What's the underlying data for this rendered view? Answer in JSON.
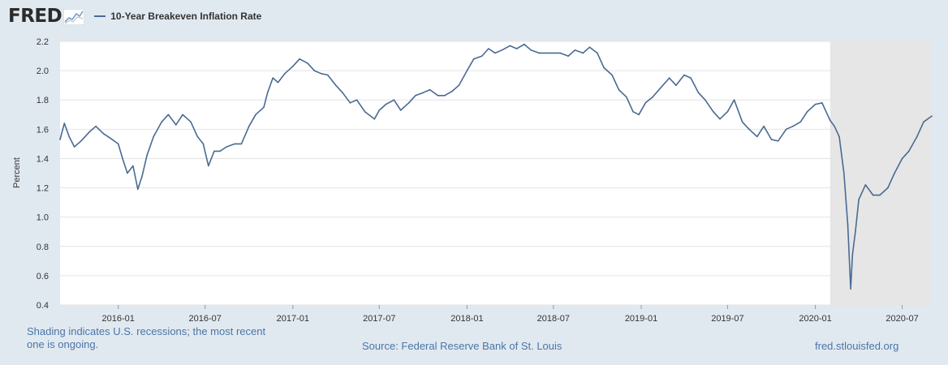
{
  "header": {
    "logo_text": "FRED",
    "logo_icon": "trend-graph-icon"
  },
  "colors": {
    "background": "#e1e9f0",
    "plot_background": "#ffffff",
    "series_line": "#4a6a93",
    "recession_shade": "#e6e6e6",
    "gridline": "#e4e4e4",
    "footer_text": "#4b75a6"
  },
  "chart_data": {
    "type": "line",
    "title": "",
    "xlabel": "",
    "ylabel": "Percent",
    "ylim": [
      0.4,
      2.2
    ],
    "y_ticks": [
      "0.4",
      "0.6",
      "0.8",
      "1.0",
      "1.2",
      "1.4",
      "1.6",
      "1.8",
      "2.0",
      "2.2"
    ],
    "x_ticks": [
      "2016-01",
      "2016-07",
      "2017-01",
      "2017-07",
      "2018-01",
      "2018-07",
      "2019-01",
      "2019-07",
      "2020-01",
      "2020-07"
    ],
    "xlim": [
      "2015-09-01",
      "2020-09-01"
    ],
    "grid": "horizontal",
    "legend_position": "top-left",
    "recession_shading": [
      {
        "start": "2020-02-01",
        "end": "2020-09-01"
      }
    ],
    "series": [
      {
        "name": "10-Year Breakeven Inflation Rate",
        "x": [
          "2015-09-01",
          "2015-09-10",
          "2015-09-20",
          "2015-10-01",
          "2015-10-15",
          "2015-11-01",
          "2015-11-15",
          "2015-12-01",
          "2015-12-15",
          "2016-01-01",
          "2016-01-10",
          "2016-01-20",
          "2016-02-01",
          "2016-02-11",
          "2016-02-20",
          "2016-03-01",
          "2016-03-15",
          "2016-04-01",
          "2016-04-15",
          "2016-05-01",
          "2016-05-15",
          "2016-06-01",
          "2016-06-15",
          "2016-06-27",
          "2016-07-08",
          "2016-07-20",
          "2016-08-01",
          "2016-08-15",
          "2016-09-01",
          "2016-09-15",
          "2016-10-01",
          "2016-10-15",
          "2016-11-01",
          "2016-11-09",
          "2016-11-20",
          "2016-12-01",
          "2016-12-15",
          "2017-01-01",
          "2017-01-15",
          "2017-02-01",
          "2017-02-15",
          "2017-03-01",
          "2017-03-15",
          "2017-04-01",
          "2017-04-15",
          "2017-05-01",
          "2017-05-15",
          "2017-06-01",
          "2017-06-21",
          "2017-07-01",
          "2017-07-15",
          "2017-08-01",
          "2017-08-15",
          "2017-09-01",
          "2017-09-15",
          "2017-10-01",
          "2017-10-15",
          "2017-11-01",
          "2017-11-15",
          "2017-12-01",
          "2017-12-15",
          "2018-01-01",
          "2018-01-15",
          "2018-02-01",
          "2018-02-15",
          "2018-03-01",
          "2018-03-15",
          "2018-04-01",
          "2018-04-15",
          "2018-05-01",
          "2018-05-15",
          "2018-06-01",
          "2018-06-15",
          "2018-07-01",
          "2018-07-15",
          "2018-08-01",
          "2018-08-15",
          "2018-09-01",
          "2018-09-15",
          "2018-10-01",
          "2018-10-15",
          "2018-11-01",
          "2018-11-15",
          "2018-12-01",
          "2018-12-15",
          "2018-12-27",
          "2019-01-10",
          "2019-01-25",
          "2019-02-10",
          "2019-03-01",
          "2019-03-15",
          "2019-04-01",
          "2019-04-15",
          "2019-05-01",
          "2019-05-15",
          "2019-06-01",
          "2019-06-15",
          "2019-07-01",
          "2019-07-15",
          "2019-08-01",
          "2019-08-15",
          "2019-09-01",
          "2019-09-15",
          "2019-10-01",
          "2019-10-15",
          "2019-11-01",
          "2019-11-15",
          "2019-12-01",
          "2019-12-15",
          "2020-01-01",
          "2020-01-15",
          "2020-02-01",
          "2020-02-10",
          "2020-02-20",
          "2020-03-01",
          "2020-03-09",
          "2020-03-15",
          "2020-03-19",
          "2020-03-25",
          "2020-04-01",
          "2020-04-15",
          "2020-05-01",
          "2020-05-15",
          "2020-06-01",
          "2020-06-15",
          "2020-07-01",
          "2020-07-15",
          "2020-08-01",
          "2020-08-15",
          "2020-09-01"
        ],
        "values": [
          1.53,
          1.64,
          1.55,
          1.48,
          1.52,
          1.58,
          1.62,
          1.57,
          1.54,
          1.5,
          1.4,
          1.3,
          1.35,
          1.19,
          1.28,
          1.42,
          1.55,
          1.65,
          1.7,
          1.63,
          1.7,
          1.65,
          1.55,
          1.5,
          1.35,
          1.45,
          1.45,
          1.48,
          1.5,
          1.5,
          1.62,
          1.7,
          1.75,
          1.85,
          1.95,
          1.92,
          1.98,
          2.03,
          2.08,
          2.05,
          2.0,
          1.98,
          1.97,
          1.9,
          1.85,
          1.78,
          1.8,
          1.72,
          1.67,
          1.73,
          1.77,
          1.8,
          1.73,
          1.78,
          1.83,
          1.85,
          1.87,
          1.83,
          1.83,
          1.86,
          1.9,
          2.0,
          2.08,
          2.1,
          2.15,
          2.12,
          2.14,
          2.17,
          2.15,
          2.18,
          2.14,
          2.12,
          2.12,
          2.12,
          2.12,
          2.1,
          2.14,
          2.12,
          2.16,
          2.12,
          2.02,
          1.97,
          1.87,
          1.82,
          1.72,
          1.7,
          1.78,
          1.82,
          1.88,
          1.95,
          1.9,
          1.97,
          1.95,
          1.85,
          1.8,
          1.72,
          1.67,
          1.72,
          1.8,
          1.65,
          1.6,
          1.55,
          1.62,
          1.53,
          1.52,
          1.6,
          1.62,
          1.65,
          1.72,
          1.77,
          1.78,
          1.66,
          1.62,
          1.55,
          1.3,
          0.95,
          0.51,
          0.75,
          0.9,
          1.12,
          1.22,
          1.15,
          1.15,
          1.2,
          1.3,
          1.4,
          1.45,
          1.55,
          1.65,
          1.69
        ]
      }
    ]
  },
  "footer": {
    "shading_note": "Shading indicates U.S. recessions; the most recent one is ongoing.",
    "source": "Source: Federal Reserve Bank of St. Louis",
    "url": "fred.stlouisfed.org"
  }
}
